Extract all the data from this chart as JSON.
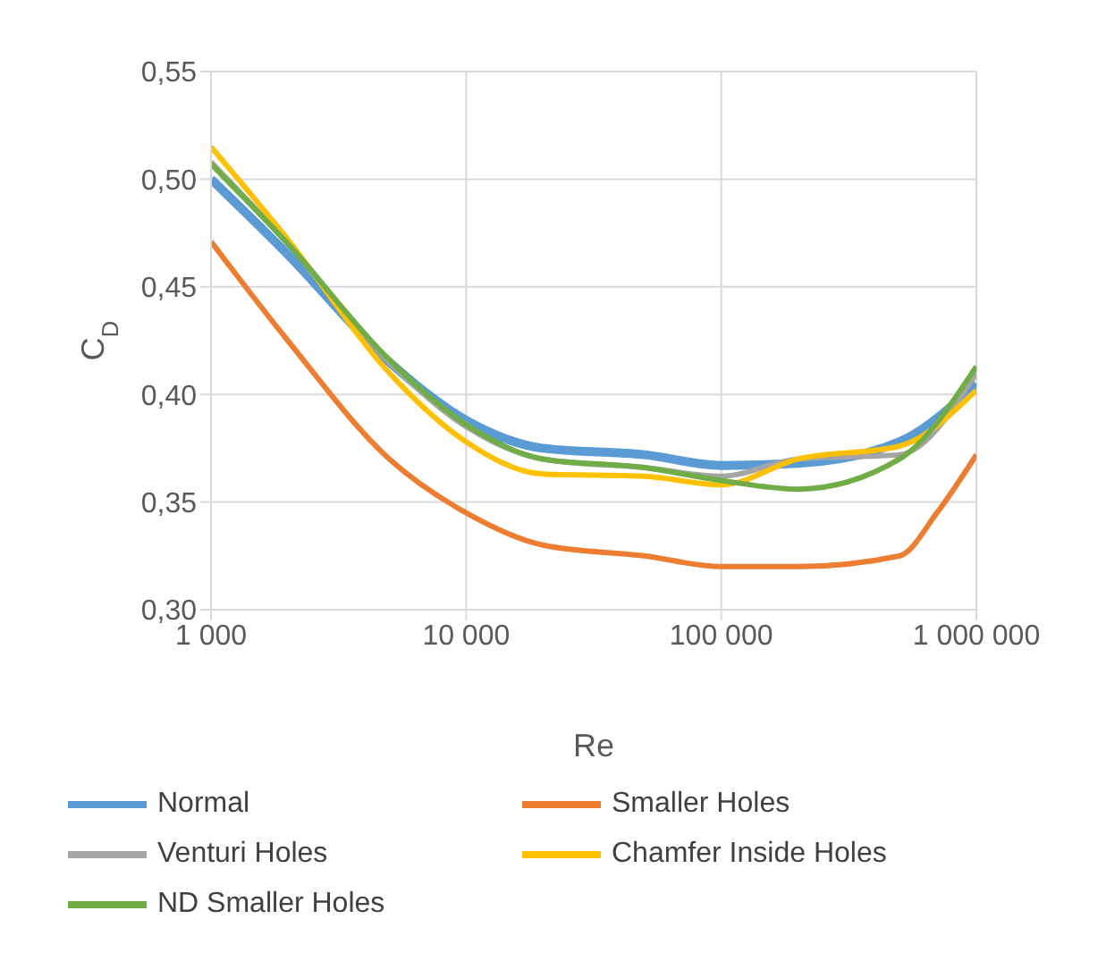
{
  "chart_data": {
    "type": "line",
    "xlabel": "Re",
    "ylabel": "C$_{D}$",
    "log": "x",
    "grid": true,
    "legend": "bottom",
    "marker": "none",
    "x": [
      1000,
      2000,
      5000,
      10000,
      20000,
      50000,
      100000,
      200000,
      500000,
      1000000
    ],
    "xlim": [
      1000,
      1000000
    ],
    "xticks": [
      {
        "value": 1000,
        "label": "1 000"
      },
      {
        "value": 10000,
        "label": "10 000"
      },
      {
        "value": 100000,
        "label": "100 000"
      },
      {
        "value": 1000000,
        "label": "1 000 000"
      }
    ],
    "ylim": [
      0.3,
      0.55
    ],
    "yticks": [
      {
        "value": 0.3,
        "label": "0,30"
      },
      {
        "value": 0.35,
        "label": "0,35"
      },
      {
        "value": 0.4,
        "label": "0,40"
      },
      {
        "value": 0.45,
        "label": "0,45"
      },
      {
        "value": 0.5,
        "label": "0,50"
      },
      {
        "value": 0.55,
        "label": "0,55"
      }
    ],
    "series": [
      {
        "name": "Normal",
        "color": "#5b9bd5",
        "values": [
          0.5,
          0.465,
          0.415,
          0.388,
          0.375,
          0.372,
          0.367,
          0.368,
          0.378,
          0.405
        ]
      },
      {
        "name": "Smaller Holes",
        "color": "#ed7d31",
        "x": [
          1000,
          2000,
          5000,
          10000,
          20000,
          50000,
          100000,
          200000,
          500000,
          700000,
          1000000
        ],
        "values": [
          0.471,
          0.425,
          0.37,
          0.345,
          0.33,
          0.325,
          0.32,
          0.32,
          0.325,
          0.345,
          0.372
        ]
      },
      {
        "name": "Venturi Holes",
        "color": "#a5a5a5",
        "values": [
          0.508,
          0.47,
          0.415,
          0.385,
          0.37,
          0.366,
          0.362,
          0.37,
          0.372,
          0.41
        ]
      },
      {
        "name": "Chamfer Inside Holes",
        "color": "#ffc000",
        "values": [
          0.515,
          0.472,
          0.41,
          0.378,
          0.363,
          0.362,
          0.358,
          0.37,
          0.376,
          0.402
        ]
      },
      {
        "name": "ND Smaller Holes",
        "color": "#70ad47",
        "values": [
          0.507,
          0.47,
          0.416,
          0.386,
          0.37,
          0.366,
          0.36,
          0.356,
          0.37,
          0.413
        ]
      }
    ]
  }
}
